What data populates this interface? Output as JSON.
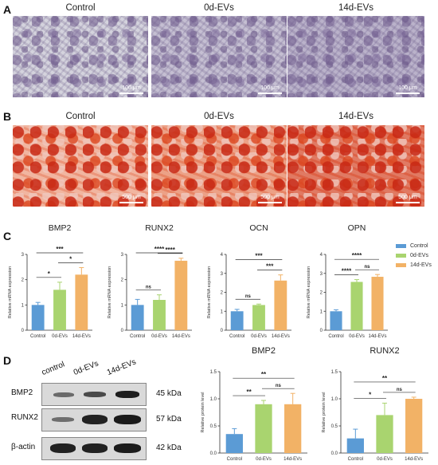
{
  "panels": {
    "A": {
      "letter": "A",
      "titles": [
        "Control",
        "0d-EVs",
        "14d-EVs"
      ],
      "scale": "100 μm"
    },
    "B": {
      "letter": "B",
      "titles": [
        "Control",
        "0d-EVs",
        "14d-EVs"
      ],
      "scale": "500 μm"
    },
    "C": {
      "letter": "C"
    },
    "D": {
      "letter": "D",
      "lanes": [
        "control",
        "0d-EVs",
        "14d-EVs"
      ],
      "bands": [
        {
          "name": "BMP2",
          "kda": "45 kDa"
        },
        {
          "name": "RUNX2",
          "kda": "57 kDa"
        },
        {
          "name": "β-actin",
          "kda": "42 kDa"
        }
      ]
    }
  },
  "legend": [
    {
      "label": "Control",
      "color": "#5b9bd5"
    },
    {
      "label": "0d-EVs",
      "color": "#a9d46f"
    },
    {
      "label": "14d-EVs",
      "color": "#f2b266"
    }
  ],
  "chart_data": [
    {
      "type": "bar",
      "title": "BMP2",
      "ylabel": "Relative mRNA expression",
      "categories": [
        "Control",
        "0d-EVs",
        "14d-EVs"
      ],
      "values": [
        1.0,
        1.6,
        2.2
      ],
      "errors": [
        0.1,
        0.3,
        0.28
      ],
      "ylim": [
        0,
        3
      ],
      "yticks": [
        "0",
        "1",
        "2",
        "3"
      ],
      "sig": [
        {
          "from": 0,
          "to": 1,
          "label": "*"
        },
        {
          "from": 1,
          "to": 2,
          "label": "*"
        },
        {
          "from": 0,
          "to": 2,
          "label": "***"
        }
      ]
    },
    {
      "type": "bar",
      "title": "RUNX2",
      "ylabel": "Relative mRNA expression",
      "categories": [
        "Control",
        "0d-EVs",
        "14d-EVs"
      ],
      "values": [
        1.0,
        1.2,
        2.75
      ],
      "errors": [
        0.22,
        0.2,
        0.1
      ],
      "ylim": [
        0,
        3
      ],
      "yticks": [
        "0",
        "1",
        "2",
        "3"
      ],
      "sig": [
        {
          "from": 0,
          "to": 1,
          "label": "ns"
        },
        {
          "from": 1,
          "to": 2,
          "label": "****"
        },
        {
          "from": 0,
          "to": 2,
          "label": "****"
        }
      ]
    },
    {
      "type": "bar",
      "title": "OCN",
      "ylabel": "Relative mRNA expression",
      "categories": [
        "Control",
        "0d-EVs",
        "14d-EVs"
      ],
      "values": [
        1.0,
        1.33,
        2.62
      ],
      "errors": [
        0.1,
        0.05,
        0.3
      ],
      "ylim": [
        0,
        4
      ],
      "yticks": [
        "0",
        "1",
        "2",
        "3",
        "4"
      ],
      "sig": [
        {
          "from": 0,
          "to": 1,
          "label": "ns"
        },
        {
          "from": 1,
          "to": 2,
          "label": "***"
        },
        {
          "from": 0,
          "to": 2,
          "label": "***"
        }
      ]
    },
    {
      "type": "bar",
      "title": "OPN",
      "ylabel": "Relative mRNA expression",
      "categories": [
        "Control",
        "0d-EVs",
        "14d-EVs"
      ],
      "values": [
        1.0,
        2.55,
        2.82
      ],
      "errors": [
        0.08,
        0.12,
        0.12
      ],
      "ylim": [
        0,
        4
      ],
      "yticks": [
        "0",
        "1",
        "2",
        "3",
        "4"
      ],
      "sig": [
        {
          "from": 0,
          "to": 1,
          "label": "****"
        },
        {
          "from": 1,
          "to": 2,
          "label": "ns"
        },
        {
          "from": 0,
          "to": 2,
          "label": "****"
        }
      ]
    },
    {
      "type": "bar",
      "title": "BMP2",
      "ylabel": "Relative protein level",
      "categories": [
        "Control",
        "0d-EVs",
        "14d-EVs"
      ],
      "values": [
        0.35,
        0.9,
        0.9
      ],
      "errors": [
        0.1,
        0.07,
        0.2
      ],
      "ylim": [
        0,
        1.5
      ],
      "yticks": [
        "0.0",
        "0.5",
        "1.0",
        "1.5"
      ],
      "sig": [
        {
          "from": 0,
          "to": 1,
          "label": "**"
        },
        {
          "from": 1,
          "to": 2,
          "label": "ns"
        },
        {
          "from": 0,
          "to": 2,
          "label": "**"
        }
      ]
    },
    {
      "type": "bar",
      "title": "RUNX2",
      "ylabel": "Relative protein level",
      "categories": [
        "Control",
        "0d-EVs",
        "14d-EVs"
      ],
      "values": [
        0.27,
        0.7,
        1.0
      ],
      "errors": [
        0.17,
        0.22,
        0.03
      ],
      "ylim": [
        0,
        1.5
      ],
      "yticks": [
        "0.0",
        "0.5",
        "1.0",
        "1.5"
      ],
      "sig": [
        {
          "from": 0,
          "to": 1,
          "label": "*"
        },
        {
          "from": 1,
          "to": 2,
          "label": "ns"
        },
        {
          "from": 0,
          "to": 2,
          "label": "**"
        }
      ]
    }
  ]
}
